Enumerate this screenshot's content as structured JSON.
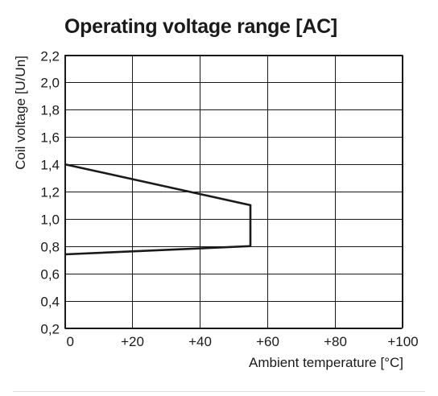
{
  "chart_data": {
    "type": "line",
    "title": "Operating voltage range [AC]",
    "xlabel": "Ambient temperature [°C]",
    "ylabel": "Coil voltage [U/Un]",
    "xlim": [
      0,
      100
    ],
    "ylim": [
      0.2,
      2.2
    ],
    "x_ticks": [
      0,
      20,
      40,
      60,
      80,
      100
    ],
    "x_tick_labels": [
      "0",
      "+20",
      "+40",
      "+60",
      "+80",
      "+100"
    ],
    "y_ticks": [
      0.2,
      0.4,
      0.6,
      0.8,
      1.0,
      1.2,
      1.4,
      1.6,
      1.8,
      2.0,
      2.2
    ],
    "y_tick_labels": [
      "0,2",
      "0,4",
      "0,6",
      "0,8",
      "1,0",
      "1,2",
      "1,4",
      "1,6",
      "1,8",
      "2,0",
      "2,2"
    ],
    "grid": true,
    "series": [
      {
        "x": [
          0,
          55,
          55,
          0
        ],
        "y": [
          1.4,
          1.1,
          0.8,
          0.74
        ]
      }
    ]
  }
}
